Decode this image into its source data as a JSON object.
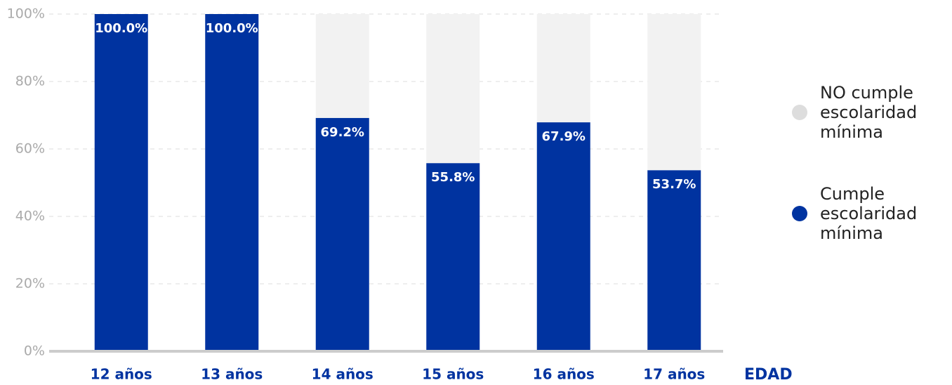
{
  "chart_data": {
    "type": "stacked_bar",
    "x_label": "EDAD",
    "categories": [
      "12 años",
      "13 años",
      "14 años",
      "15 años",
      "16 años",
      "17 años"
    ],
    "series": [
      {
        "name": "Cumple escolaridad mínima",
        "color": "#0033a0",
        "values": [
          100.0,
          100.0,
          69.2,
          55.8,
          67.9,
          53.7
        ],
        "value_labels": [
          "100.0%",
          "100.0%",
          "69.2%",
          "55.8%",
          "67.9%",
          "53.7%"
        ]
      },
      {
        "name": "NO cumple escolaridad mínima",
        "color": "#f2f2f2",
        "values": [
          0,
          0,
          30.8,
          44.2,
          32.1,
          46.3
        ]
      }
    ],
    "ylim": [
      0,
      100
    ],
    "yticks": [
      {
        "value": 0,
        "label": "0%"
      },
      {
        "value": 20,
        "label": "20%"
      },
      {
        "value": 40,
        "label": "40%"
      },
      {
        "value": 60,
        "label": "60%"
      },
      {
        "value": 80,
        "label": "80%"
      },
      {
        "value": 100,
        "label": "100%"
      }
    ],
    "grid": true,
    "legend": "right"
  }
}
